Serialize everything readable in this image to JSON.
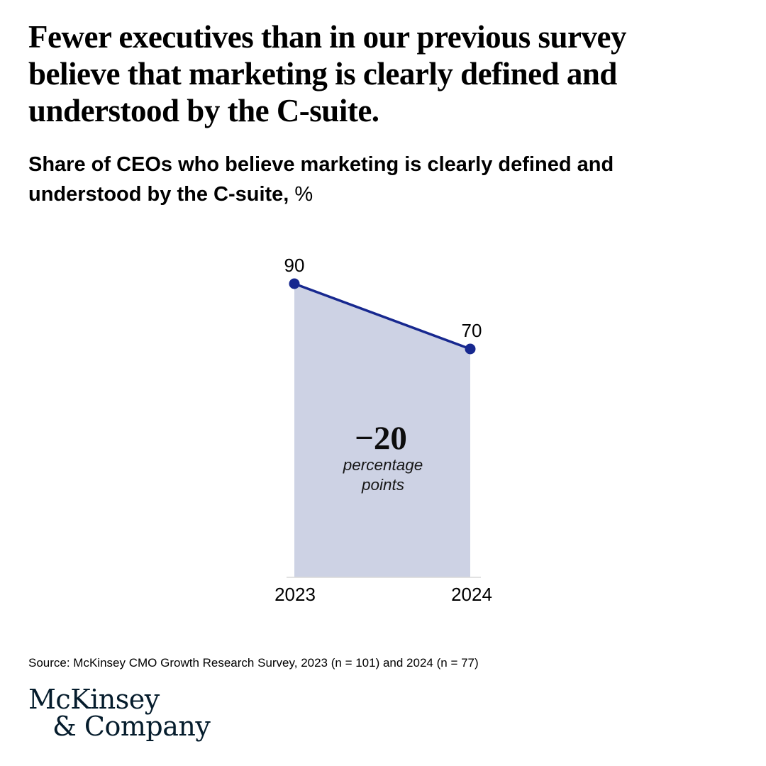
{
  "header": {
    "title_lines": [
      "Fewer executives than in our previous survey",
      "believe that marketing is clearly defined and",
      "understood by the C-suite."
    ],
    "subtitle_lines": [
      "Share of CEOs who believe marketing is clearly defined and",
      "understood by the C-suite,"
    ],
    "subtitle_unit": "%"
  },
  "chart_data": {
    "type": "area",
    "title": "Share of CEOs who believe marketing is clearly defined and understood by the C-suite, %",
    "categories": [
      "2023",
      "2024"
    ],
    "series": [
      {
        "name": "Share of CEOs",
        "values": [
          90,
          70
        ]
      }
    ],
    "point_labels": [
      "90",
      "70"
    ],
    "delta_annotation": {
      "value": "−20",
      "caption_lines": [
        "percentage",
        "points"
      ]
    },
    "ylim": [
      0,
      90
    ],
    "grid": false,
    "legend": "none",
    "colors": {
      "line": "#17288f",
      "point": "#17288f",
      "fill": "#cdd2e4",
      "axis": "#d9d9d9",
      "label": "#000000"
    }
  },
  "footer": {
    "source": "Source: McKinsey CMO Growth Research Survey, 2023 (n = 101) and 2024 (n = 77)",
    "logo_lines": [
      "McKinsey",
      "& Company"
    ],
    "logo_color": "#051c2c"
  }
}
